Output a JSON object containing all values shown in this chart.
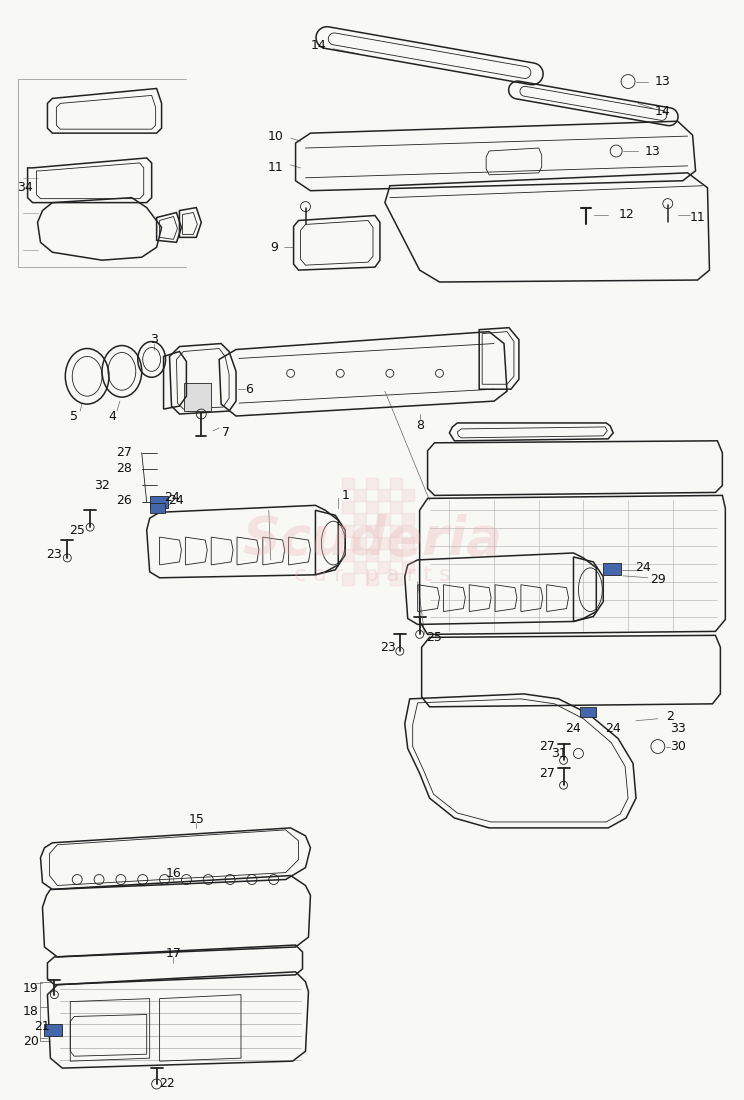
{
  "bg_color": "#f8f8f5",
  "line_color": "#222222",
  "label_color": "#111111",
  "leader_color": "#666666",
  "wm_color_text": "#e8b0b0",
  "wm_color_check": "#e8b0b0",
  "wm_alpha": 0.3,
  "fig_width": 7.44,
  "fig_height": 11.0,
  "dpi": 100,
  "lw_main": 1.1,
  "lw_thin": 0.6,
  "lw_leader": 0.5
}
